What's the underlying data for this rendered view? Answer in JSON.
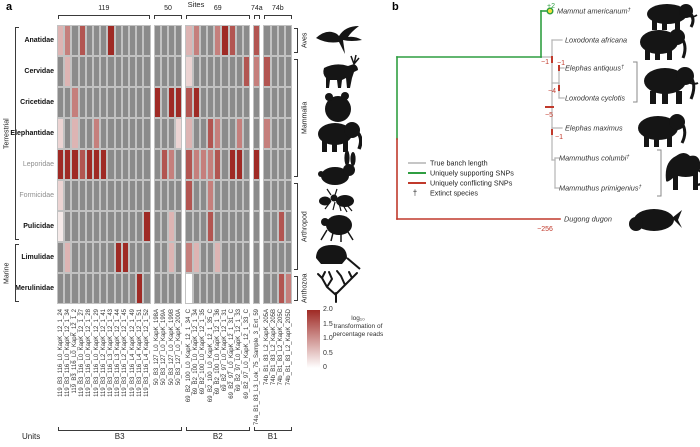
{
  "figure": {
    "panel_a_label": "a",
    "panel_b_label": "b"
  },
  "chart_data": [
    {
      "type": "heatmap",
      "title": "Sites",
      "unit_axis_title": "Units",
      "rows": [
        {
          "family": "Anatidae",
          "muted": false,
          "class": "Aves",
          "silhouette": "bird"
        },
        {
          "family": "Cervidae",
          "muted": false,
          "class": "Mammalia",
          "silhouette": "deer"
        },
        {
          "family": "Cricetidae",
          "muted": false,
          "class": "Mammalia",
          "silhouette": "hamster"
        },
        {
          "family": "Elephantidae",
          "muted": false,
          "class": "Mammalia",
          "silhouette": "elephant"
        },
        {
          "family": "Leporidae",
          "muted": true,
          "class": "Mammalia",
          "silhouette": "rabbit"
        },
        {
          "family": "Formicidae",
          "muted": true,
          "class": "Arthropod",
          "silhouette": "ant"
        },
        {
          "family": "Pulicidae",
          "muted": false,
          "class": "Arthropod",
          "silhouette": "flea"
        },
        {
          "family": "Limulidae",
          "muted": false,
          "class": "Arthropod",
          "silhouette": "horseshoe-crab"
        },
        {
          "family": "Merulinidae",
          "muted": false,
          "class": "Anthozoa",
          "silhouette": "coral"
        }
      ],
      "habitat_groups": [
        {
          "label": "Terrestrial",
          "rows": [
            0,
            6
          ]
        },
        {
          "label": "Marine",
          "rows": [
            7,
            8
          ]
        }
      ],
      "class_groups": [
        {
          "label": "Aves",
          "rows": [
            0,
            0
          ]
        },
        {
          "label": "Mammalia",
          "rows": [
            1,
            4
          ]
        },
        {
          "label": "Arthropod",
          "rows": [
            5,
            7
          ]
        },
        {
          "label": "Anthozoa",
          "rows": [
            8,
            8
          ]
        }
      ],
      "column_groups": [
        {
          "site": "119",
          "unit": "B3",
          "columns": [
            "119_B3_116_L0_KapK_12_1_24",
            "119_B3_116_L0_KapK_12_1_34",
            "119_B3_116_L0_KapK_12_1_2",
            "119_B3_116_L0_KapK_12_1_27",
            "119_B3_116_L0_KapK_12_1_28",
            "119_B3_116_L0_KapK_12_1_29",
            "119_B3_116_L2_KapK_12_1_41",
            "119_B3_116_L3_KapK_12_1_43",
            "119_B3_116_L3_KapK_12_1_44",
            "119_B3_116_L2_KapK_12_1_45",
            "119_B3_116_L4_KapK_12_1_49",
            "119_B3_116_L4_KapK_12_1_51",
            "119_B3_116_L4_KapK_12_1_52"
          ]
        },
        {
          "site": "50",
          "unit": "B3",
          "columns": [
            "50_B3_127_L0_KapK_198A",
            "50_B3_127_L0_KapK_199A",
            "50_B3_127_L0_KapK_199B",
            "50_B3_127_L0_KapK_200A"
          ]
        },
        {
          "site": "69",
          "unit": "B2",
          "columns": [
            "69_B2_100_L0_KapK_12_1_34_C",
            "69_B2_100_L0_KapK_12_1_34",
            "69_B2_100_L0_KapK_12_1_35",
            "69_B2_100_L0_KapK_12_1_35_C",
            "69_B2_100_L0_KapK_12_1_36",
            "69_B2_97_L0_KapK_12_1_31",
            "69_B2_97_L0_KapK_12_1_31_C",
            "69_B2_97_L0_KapK_12_1_33",
            "69_B2_97_L0_KapK_12_1_33_C"
          ]
        },
        {
          "site": "74a",
          "unit": "B1",
          "columns": [
            "74a_B1_83_L3_Lok_75_Sample_3_Ext_59"
          ]
        },
        {
          "site": "74b",
          "unit": "B1",
          "columns": [
            "74b_B1_83_L2_KapK_205A",
            "74b_B1_83_L2_KapK_205B",
            "74b_B1_83_L2_KapK_205C",
            "74b_B1_83_L2_KapK_205D"
          ]
        }
      ],
      "unit_brackets": [
        {
          "label": "B3",
          "groups": [
            0,
            1
          ]
        },
        {
          "label": "B2",
          "groups": [
            2,
            2
          ]
        },
        {
          "label": "B1",
          "groups": [
            3,
            4
          ]
        }
      ],
      "values": [
        [
          0.7,
          1.2,
          null,
          1.6,
          null,
          null,
          null,
          2.0,
          null,
          null,
          null,
          null,
          null,
          null,
          null,
          null,
          null,
          0.7,
          1.2,
          null,
          null,
          1.2,
          2.0,
          1.6,
          null,
          null,
          1.6,
          null,
          null,
          null,
          null
        ],
        [
          null,
          0.7,
          null,
          null,
          null,
          null,
          null,
          null,
          null,
          null,
          null,
          null,
          null,
          null,
          null,
          null,
          null,
          0.4,
          null,
          null,
          null,
          null,
          null,
          null,
          null,
          1.6,
          1.2,
          1.6,
          null,
          null,
          null
        ],
        [
          null,
          null,
          1.2,
          null,
          null,
          null,
          null,
          null,
          null,
          null,
          null,
          null,
          null,
          2.0,
          null,
          2.0,
          2.0,
          1.6,
          2.0,
          null,
          null,
          null,
          null,
          null,
          null,
          null,
          null,
          null,
          null,
          null,
          null
        ],
        [
          0.4,
          null,
          0.7,
          null,
          null,
          1.2,
          null,
          null,
          null,
          null,
          null,
          null,
          null,
          null,
          null,
          null,
          0.4,
          0.7,
          null,
          null,
          1.6,
          1.2,
          null,
          null,
          1.2,
          null,
          null,
          1.2,
          null,
          null,
          null
        ],
        [
          2.0,
          2.0,
          2.0,
          1.6,
          2.0,
          2.0,
          2.0,
          null,
          null,
          null,
          null,
          null,
          null,
          null,
          1.6,
          1.2,
          null,
          1.6,
          1.2,
          1.2,
          1.2,
          1.6,
          null,
          2.0,
          2.0,
          null,
          2.0,
          null,
          null,
          null,
          null
        ],
        [
          0.4,
          null,
          null,
          null,
          null,
          null,
          null,
          null,
          null,
          null,
          null,
          null,
          null,
          null,
          null,
          null,
          null,
          1.6,
          null,
          null,
          1.2,
          null,
          null,
          null,
          null,
          null,
          null,
          null,
          null,
          null,
          null
        ],
        [
          0.2,
          null,
          null,
          null,
          null,
          null,
          null,
          null,
          null,
          null,
          null,
          null,
          2.0,
          null,
          null,
          0.7,
          null,
          null,
          null,
          null,
          1.6,
          null,
          null,
          null,
          null,
          null,
          null,
          null,
          null,
          1.6,
          null
        ],
        [
          null,
          0.7,
          null,
          null,
          null,
          null,
          null,
          null,
          2.0,
          2.0,
          null,
          null,
          null,
          null,
          null,
          0.7,
          null,
          1.2,
          0.7,
          null,
          null,
          0.7,
          null,
          null,
          null,
          null,
          null,
          null,
          null,
          null,
          null
        ],
        [
          null,
          null,
          null,
          null,
          null,
          null,
          null,
          null,
          null,
          null,
          null,
          2.0,
          null,
          null,
          null,
          null,
          null,
          0,
          null,
          null,
          null,
          null,
          null,
          null,
          null,
          null,
          null,
          null,
          null,
          1.6,
          1.2
        ]
      ],
      "legend": {
        "ticks": [
          "2.0",
          "1.5",
          "1.0",
          "0.5",
          "0"
        ],
        "caption": "log₁₀ transformation of percentage reads",
        "min": 0,
        "max": 2,
        "min_color": "#ffffff",
        "max_color": "#9f2a25",
        "na_color": "#8b8b8b"
      }
    }
  ],
  "phylogeny": {
    "taxa": [
      {
        "name": "Mammut americanum",
        "extinct": true
      },
      {
        "name": "Loxodonta africana",
        "extinct": false
      },
      {
        "name": "Elephas antiquus",
        "extinct": true
      },
      {
        "name": "Loxodonta cyclotis",
        "extinct": false
      },
      {
        "name": "Elephas maximus",
        "extinct": false
      },
      {
        "name": "Mammuthus columbi",
        "extinct": true
      },
      {
        "name": "Mammuthus primigenius",
        "extinct": true
      },
      {
        "name": "Dugong dugon",
        "extinct": false
      }
    ],
    "annotations": [
      {
        "value": "+2",
        "kind": "supporting"
      },
      {
        "value": "−1",
        "kind": "conflicting"
      },
      {
        "value": "−1",
        "kind": "conflicting"
      },
      {
        "value": "−4",
        "kind": "conflicting"
      },
      {
        "value": "−5",
        "kind": "conflicting"
      },
      {
        "value": "−1",
        "kind": "conflicting"
      },
      {
        "value": "−256",
        "kind": "conflicting"
      }
    ],
    "legend": [
      {
        "swatch": "true-branch",
        "label": "True banch length"
      },
      {
        "swatch": "supporting",
        "label": "Uniquely supporting SNPs"
      },
      {
        "swatch": "conflicting",
        "label": "Uniquely conflicting SNPs"
      },
      {
        "swatch": "dagger",
        "label": "Extinct species"
      }
    ],
    "dagger": "†",
    "colors": {
      "supporting": "#2f9e41",
      "conflicting": "#c0392b",
      "true_branch": "#b3b3b3",
      "node_fill": "#f0e13c"
    }
  }
}
